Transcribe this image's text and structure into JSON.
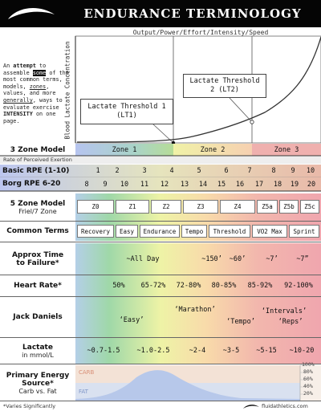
{
  "header": {
    "title": "ENDURANCE TERMINOLOGY",
    "icon": "swoosh-logo"
  },
  "chart": {
    "axis_title": "Output/Power/Effort/Intensity/Speed",
    "vertical_label": "Blood Lactate Concentration",
    "lt1": {
      "line1": "Lactate Threshold 1",
      "line2": "(LT1)"
    },
    "lt2": {
      "line1": "Lactate Threshold",
      "line2": "2 (LT2)"
    }
  },
  "intro": {
    "part1": "An",
    "part2": "attempt",
    "part3": "to assemble",
    "part4": "some",
    "part5": "of the most common terms, models,",
    "part6": "zones",
    "part7": ", values, and more",
    "part8": "generally",
    "part9": ", ways to evaluate exercise",
    "part10": "INTENSITY",
    "part11": "on one page."
  },
  "three_zone": {
    "label": "3 Zone Model",
    "zones": [
      "Zone 1",
      "Zone 2",
      "Zone 3"
    ]
  },
  "rpe_caption": "Rate of Perceived Exertion",
  "basic_rpe": {
    "label": "Basic RPE (1-10)",
    "values": [
      "1",
      "2",
      "3",
      "4",
      "5",
      "6",
      "7",
      "8",
      "9",
      "10"
    ]
  },
  "borg_rpe": {
    "label": "Borg RPE 6-20",
    "values": [
      "8",
      "9",
      "10",
      "11",
      "12",
      "13",
      "14",
      "15",
      "16",
      "17",
      "18",
      "19",
      "20"
    ]
  },
  "five_zone": {
    "label1": "5 Zone Model",
    "label2": "Friel/7 Zone",
    "zones": [
      "Z0",
      "Z1",
      "Z2",
      "Z3",
      "Z4",
      "Z5a",
      "Z5b",
      "Z5c"
    ]
  },
  "common_terms": {
    "label": "Common Terms",
    "terms": [
      "Recovery",
      "Easy",
      "Endurance",
      "Tempo",
      "Threshold",
      "VO2 Max",
      "Sprint"
    ]
  },
  "time_to_failure": {
    "label1": "Approx Time",
    "label2": "to Failure*",
    "values": [
      "~All Day",
      "~150’",
      "~60’",
      "~7’",
      "~7”"
    ]
  },
  "heart_rate": {
    "label": "Heart Rate*",
    "values": [
      "50%",
      "65-72%",
      "72-80%",
      "80-85%",
      "85-92%",
      "92-100%"
    ]
  },
  "jack_daniels": {
    "label": "Jack Daniels",
    "terms": [
      "‘Easy’",
      "‘Marathon’",
      "‘Tempo’",
      "‘Intervals’",
      "‘Reps’"
    ]
  },
  "lactate": {
    "label1": "Lactate",
    "label2": "in mmol/L",
    "values": [
      "~0.7-1.5",
      "~1.0-2.5",
      "~2-4",
      "~3-5",
      "~5-15",
      "~10-20"
    ]
  },
  "energy": {
    "label1": "Primary Energy",
    "label2": "Source*",
    "label3": "Carb vs. Fat",
    "carb": "CARB",
    "fat": "FAT",
    "percents": [
      "100%",
      "80%",
      "60%",
      "40%",
      "20%"
    ]
  },
  "footer": {
    "note": "*Varies Significantly",
    "site": "fluidathletics.com",
    "icon": "swoosh-logo"
  }
}
